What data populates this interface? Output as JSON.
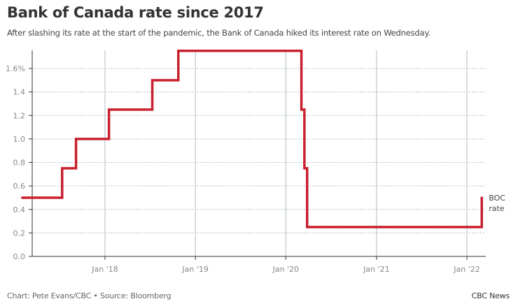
{
  "header": {
    "title": "Bank of Canada rate since 2017",
    "subtitle": "After slashing its rate at the start of the pandemic, the Bank of Canada hiked its interest rate on Wednesday."
  },
  "footer": {
    "credit": "Chart: Pete Evans/CBC • Source: Bloomberg",
    "brand": "CBC News"
  },
  "colors": {
    "line": "#c8202e",
    "grid": "#b0bcc0",
    "axis": "#333333"
  },
  "chart_data": {
    "type": "line",
    "step": true,
    "title": "Bank of Canada rate since 2017",
    "xlabel": "",
    "ylabel": "",
    "ylim": [
      0,
      1.75
    ],
    "xlim": [
      "2017-01-01",
      "2022-03-15"
    ],
    "y_ticks": [
      0.0,
      0.2,
      0.4,
      0.6,
      0.8,
      1.0,
      1.2,
      1.4,
      1.6
    ],
    "y_tick_labels": [
      "0.0",
      "0.2",
      "0.4",
      "0.6",
      "0.8",
      "1.0",
      "1.2",
      "1.4",
      "1.6%"
    ],
    "x_ticks": [
      "2018-01-01",
      "2019-01-01",
      "2020-01-01",
      "2021-01-01",
      "2022-01-01"
    ],
    "x_tick_labels": [
      "Jan '18",
      "Jan '19",
      "Jan '20",
      "Jan '21",
      "Jan '22"
    ],
    "grid": {
      "y": "dashed",
      "x": "solid"
    },
    "series": [
      {
        "name": "BOC rate",
        "label": [
          "BOC",
          "rate"
        ],
        "points": [
          {
            "date": "2017-02-01",
            "value": 0.5
          },
          {
            "date": "2017-07-12",
            "value": 0.75
          },
          {
            "date": "2017-09-06",
            "value": 1.0
          },
          {
            "date": "2018-01-17",
            "value": 1.25
          },
          {
            "date": "2018-07-11",
            "value": 1.5
          },
          {
            "date": "2018-10-24",
            "value": 1.75
          },
          {
            "date": "2020-03-04",
            "value": 1.25
          },
          {
            "date": "2020-03-16",
            "value": 0.75
          },
          {
            "date": "2020-03-27",
            "value": 0.25
          },
          {
            "date": "2022-03-02",
            "value": 0.5
          }
        ],
        "end_date": "2022-03-02"
      }
    ]
  }
}
